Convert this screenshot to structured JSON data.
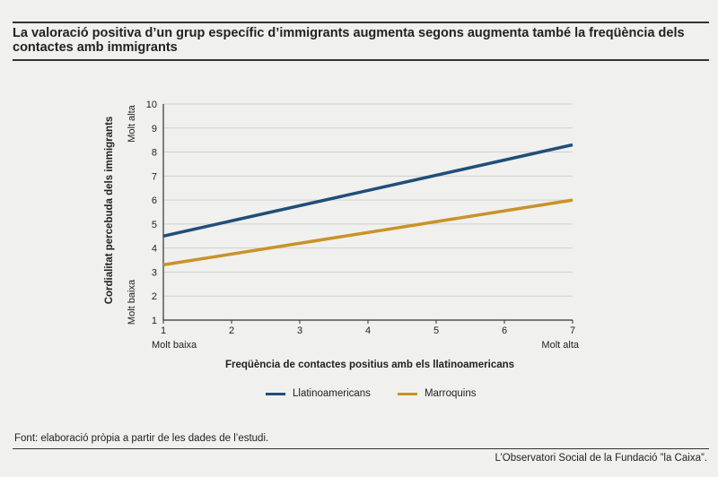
{
  "header": {
    "title": "La valoració positiva d’un grup específic d’immigrants augmenta segons augmenta també la freqüència dels contactes amb immigrants"
  },
  "footer": {
    "source": "Font: elaboració pròpia a partir de les dades de l’estudi.",
    "credit": "L’Observatori Social de la Fundació ”la Caixa”."
  },
  "colors": {
    "background": "#f0f0ee",
    "grid": "#cfcfcf",
    "series_1": "#1f4e79",
    "series_2": "#c99329"
  },
  "chart_data": {
    "type": "line",
    "title": "",
    "xlabel": "Freqüència de contactes positius amb els llatinoamericans",
    "ylabel": "Cordialitat percebuda dels immigrants",
    "xlim": [
      1,
      7
    ],
    "ylim": [
      1,
      10
    ],
    "x_ticks": [
      1,
      2,
      3,
      4,
      5,
      6,
      7
    ],
    "y_ticks": [
      1,
      2,
      3,
      4,
      5,
      6,
      7,
      8,
      9,
      10
    ],
    "x_low_label": "Molt baixa",
    "x_high_label": "Molt alta",
    "y_low_label": "Molt baixa",
    "y_high_label": "Molt alta",
    "grid": true,
    "legend_position": "bottom",
    "series": [
      {
        "name": "Llatinoamericans",
        "x": [
          1,
          7
        ],
        "y": [
          4.5,
          8.3
        ],
        "color": "#1f4e79"
      },
      {
        "name": "Marroquins",
        "x": [
          1,
          7
        ],
        "y": [
          3.3,
          6.0
        ],
        "color": "#c99329"
      }
    ]
  }
}
